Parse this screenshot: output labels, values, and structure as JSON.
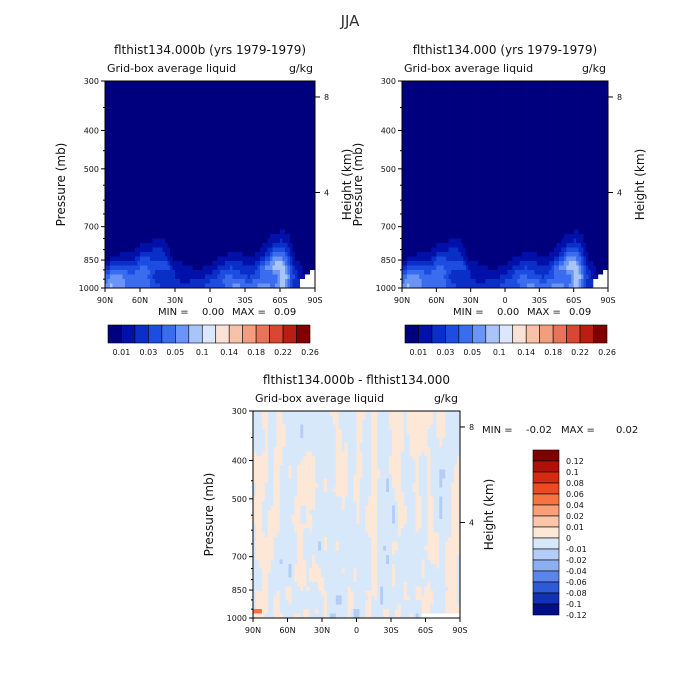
{
  "figure": {
    "title": "JJA"
  },
  "chart_data": [
    {
      "type": "heatmap",
      "title": "flthist134.000b (yrs 1979-1979)",
      "subtitle_left": "Grid-box average liquid",
      "subtitle_right": "g/kg",
      "ylabel": "Pressure (mb)",
      "y2label": "Height (km)",
      "x_ticks": [
        "90N",
        "60N",
        "30N",
        "0",
        "30S",
        "60S",
        "90S"
      ],
      "y_ticks": [
        "300",
        "400",
        "500",
        "700",
        "850",
        "1000"
      ],
      "y2_ticks": [
        "8",
        "4"
      ],
      "stats": {
        "min_label": "MIN =",
        "min": "0.00",
        "max_label": "MAX =",
        "max": "0.09"
      },
      "color_levels": [
        0.01,
        0.02,
        0.03,
        0.04,
        0.05,
        0.07,
        0.1,
        0.12,
        0.14,
        0.16,
        0.18,
        0.2,
        0.22,
        0.24,
        0.26
      ],
      "colorbar_labels": [
        "0.01",
        "0.03",
        "0.05",
        "0.1",
        "0.14",
        "0.18",
        "0.22",
        "0.26"
      ]
    },
    {
      "type": "heatmap",
      "title": "flthist134.000 (yrs 1979-1979)",
      "subtitle_left": "Grid-box average liquid",
      "subtitle_right": "g/kg",
      "ylabel": "Pressure (mb)",
      "y2label": "Height (km)",
      "x_ticks": [
        "90N",
        "60N",
        "30N",
        "0",
        "30S",
        "60S",
        "90S"
      ],
      "y_ticks": [
        "300",
        "400",
        "500",
        "700",
        "850",
        "1000"
      ],
      "y2_ticks": [
        "8",
        "4"
      ],
      "stats": {
        "min_label": "MIN =",
        "min": "0.00",
        "max_label": "MAX =",
        "max": "0.09"
      },
      "color_levels": [
        0.01,
        0.02,
        0.03,
        0.04,
        0.05,
        0.07,
        0.1,
        0.12,
        0.14,
        0.16,
        0.18,
        0.2,
        0.22,
        0.24,
        0.26
      ],
      "colorbar_labels": [
        "0.01",
        "0.03",
        "0.05",
        "0.1",
        "0.14",
        "0.18",
        "0.22",
        "0.26"
      ]
    },
    {
      "type": "heatmap",
      "title": "flthist134.000b - flthist134.000",
      "subtitle_left": "Grid-box average liquid",
      "subtitle_right": "g/kg",
      "ylabel": "Pressure (mb)",
      "y2label": "Height (km)",
      "x_ticks": [
        "90N",
        "60N",
        "30N",
        "0",
        "30S",
        "60S",
        "90S"
      ],
      "y_ticks": [
        "300",
        "400",
        "500",
        "700",
        "850",
        "1000"
      ],
      "y2_ticks": [
        "8",
        "4"
      ],
      "stats": {
        "min_label": "MIN =",
        "min": "-0.02",
        "max_label": "MAX =",
        "max": "0.02"
      },
      "color_levels": [
        -0.12,
        -0.1,
        -0.08,
        -0.06,
        -0.04,
        -0.02,
        -0.01,
        0,
        0.01,
        0.02,
        0.04,
        0.06,
        0.08,
        0.1,
        0.12
      ],
      "colorbar_labels": [
        "0.12",
        "0.1",
        "0.08",
        "0.06",
        "0.04",
        "0.02",
        "0.01",
        "0",
        "-0.01",
        "-0.02",
        "-0.04",
        "-0.06",
        "-0.08",
        "-0.1",
        "-0.12"
      ]
    }
  ],
  "palettes": {
    "absolute": [
      "#00007f",
      "#0010a8",
      "#0a2fc8",
      "#1c4de0",
      "#3a6cf0",
      "#6a94f5",
      "#a8c4f8",
      "#dbe8fb",
      "#fbe1d6",
      "#f7c2a8",
      "#f29d7e",
      "#e8735a",
      "#d8472f",
      "#b81e12",
      "#800000"
    ],
    "difference": [
      "#800000",
      "#b01008",
      "#d42a10",
      "#ec4a24",
      "#f7733f",
      "#f9a078",
      "#fbc6aa",
      "#fde8d8",
      "#d8e8fb",
      "#b4cdf6",
      "#8cb0ef",
      "#5c86e6",
      "#2e5ad6",
      "#1232b4",
      "#000e88"
    ]
  }
}
